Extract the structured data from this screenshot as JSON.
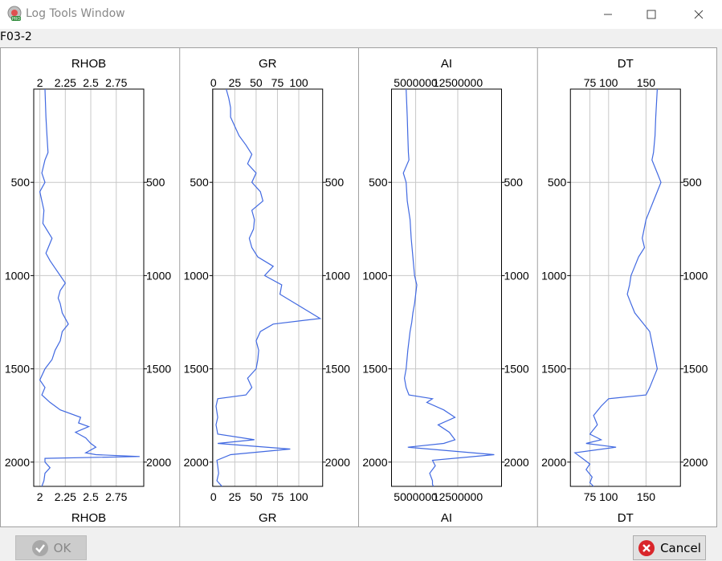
{
  "window": {
    "title": "Log Tools Window"
  },
  "well_name": "F03-2",
  "buttons": {
    "ok_label": "OK",
    "cancel_label": "Cancel"
  },
  "depth_axis": {
    "min": 0,
    "max": 2130,
    "ticks": [
      "500",
      "1000",
      "1500",
      "2000"
    ],
    "tick_values": [
      500,
      1000,
      1500,
      2000
    ],
    "reversed": true
  },
  "chart_data": [
    {
      "type": "line",
      "name": "RHOB",
      "title": "RHOB",
      "xlabel": "RHOB",
      "x_ticks": [
        "2",
        "2.25",
        "2.5",
        "2.75"
      ],
      "x_tick_values": [
        2,
        2.25,
        2.5,
        2.75
      ],
      "xlim": [
        1.94,
        3.02
      ],
      "series": [
        {
          "name": "RHOB",
          "x": [
            2.05,
            2.06,
            2.07,
            2.08,
            2.05,
            2.02,
            2.05,
            2.0,
            2.04,
            2.03,
            2.12,
            2.06,
            2.1,
            2.15,
            2.2,
            2.25,
            2.2,
            2.18,
            2.2,
            2.22,
            2.25,
            2.28,
            2.22,
            2.2,
            2.15,
            2.12,
            2.05,
            2.0,
            2.05,
            2.02,
            2.1,
            2.2,
            2.4,
            2.38,
            2.48,
            2.35,
            2.45,
            2.5,
            2.55,
            2.45,
            2.55,
            2.98,
            2.05,
            2.05,
            2.1,
            2.05,
            2.04,
            2.02
          ],
          "y": [
            0,
            150,
            250,
            340,
            380,
            450,
            500,
            550,
            650,
            720,
            800,
            880,
            920,
            960,
            1000,
            1040,
            1080,
            1120,
            1150,
            1200,
            1230,
            1260,
            1300,
            1350,
            1400,
            1450,
            1500,
            1560,
            1600,
            1640,
            1680,
            1720,
            1760,
            1790,
            1810,
            1840,
            1870,
            1900,
            1920,
            1950,
            1960,
            1970,
            1980,
            2000,
            2030,
            2060,
            2100,
            2130
          ]
        }
      ]
    },
    {
      "type": "line",
      "name": "GR",
      "title": "GR",
      "xlabel": "GR",
      "x_ticks": [
        "0",
        "25",
        "50",
        "75",
        "100"
      ],
      "x_tick_values": [
        0,
        25,
        50,
        75,
        100
      ],
      "xlim": [
        -1,
        128
      ],
      "series": [
        {
          "name": "GR",
          "x": [
            15,
            18,
            20,
            20,
            25,
            30,
            38,
            45,
            40,
            50,
            45,
            55,
            58,
            45,
            48,
            47,
            42,
            45,
            52,
            70,
            60,
            80,
            78,
            125,
            70,
            55,
            50,
            53,
            52,
            50,
            40,
            45,
            38,
            5,
            3,
            5,
            3,
            5,
            48,
            5,
            90,
            20,
            4,
            5,
            6,
            4,
            8,
            10
          ],
          "y": [
            0,
            50,
            100,
            150,
            200,
            250,
            300,
            350,
            400,
            450,
            500,
            550,
            600,
            650,
            700,
            750,
            800,
            850,
            900,
            950,
            1000,
            1050,
            1100,
            1230,
            1260,
            1300,
            1350,
            1400,
            1450,
            1500,
            1550,
            1600,
            1640,
            1660,
            1700,
            1760,
            1800,
            1850,
            1880,
            1900,
            1930,
            1960,
            1990,
            2020,
            2060,
            2100,
            2120,
            2130
          ]
        }
      ]
    },
    {
      "type": "line",
      "name": "AI",
      "title": "AI",
      "xlabel": "AI",
      "x_ticks": [
        "5000000",
        "12500000"
      ],
      "x_tick_values": [
        5000000,
        12500000
      ],
      "xlim": [
        700000,
        20300000
      ],
      "series": [
        {
          "name": "AI",
          "x": [
            3300000,
            3500000,
            3600000,
            3700000,
            3800000,
            2800000,
            3300000,
            3500000,
            4000000,
            4200000,
            4500000,
            4800000,
            5200000,
            5000000,
            4800000,
            4500000,
            4300000,
            4000000,
            3600000,
            3300000,
            3000000,
            3300000,
            3800000,
            8000000,
            7000000,
            10000000,
            12000000,
            9000000,
            11000000,
            12000000,
            10000000,
            3600000,
            19000000,
            8000000,
            8500000,
            7500000,
            8000000,
            8000000,
            8200000
          ],
          "y": [
            0,
            150,
            250,
            340,
            380,
            450,
            500,
            600,
            700,
            800,
            900,
            1000,
            1050,
            1100,
            1150,
            1200,
            1250,
            1300,
            1400,
            1500,
            1550,
            1600,
            1640,
            1660,
            1680,
            1720,
            1760,
            1800,
            1840,
            1880,
            1900,
            1920,
            1960,
            1990,
            2020,
            2060,
            2100,
            2120,
            2130
          ]
        }
      ]
    },
    {
      "type": "line",
      "name": "DT",
      "title": "DT",
      "xlabel": "DT",
      "x_ticks": [
        "75",
        "100",
        "150"
      ],
      "x_tick_values": [
        75,
        100,
        150
      ],
      "xlim": [
        49,
        196
      ],
      "series": [
        {
          "name": "DT",
          "x": [
            165,
            163,
            162,
            160,
            158,
            165,
            170,
            160,
            150,
            145,
            148,
            140,
            135,
            130,
            128,
            125,
            130,
            135,
            145,
            155,
            160,
            165,
            160,
            155,
            150,
            100,
            90,
            80,
            85,
            75,
            90,
            70,
            110,
            55,
            65,
            75,
            70,
            78,
            75,
            80
          ],
          "y": [
            0,
            150,
            250,
            340,
            380,
            450,
            500,
            600,
            700,
            800,
            850,
            900,
            950,
            1000,
            1050,
            1100,
            1150,
            1200,
            1250,
            1300,
            1400,
            1500,
            1550,
            1600,
            1640,
            1660,
            1700,
            1750,
            1800,
            1850,
            1880,
            1900,
            1920,
            1950,
            1980,
            2010,
            2040,
            2080,
            2110,
            2130
          ]
        }
      ]
    }
  ],
  "colors": {
    "curve": "#4169e1",
    "grid": "#c8c8c8"
  },
  "icons": {
    "app": "pro-app-icon",
    "ok": "check-circle-icon",
    "cancel": "cancel-circle-icon"
  }
}
